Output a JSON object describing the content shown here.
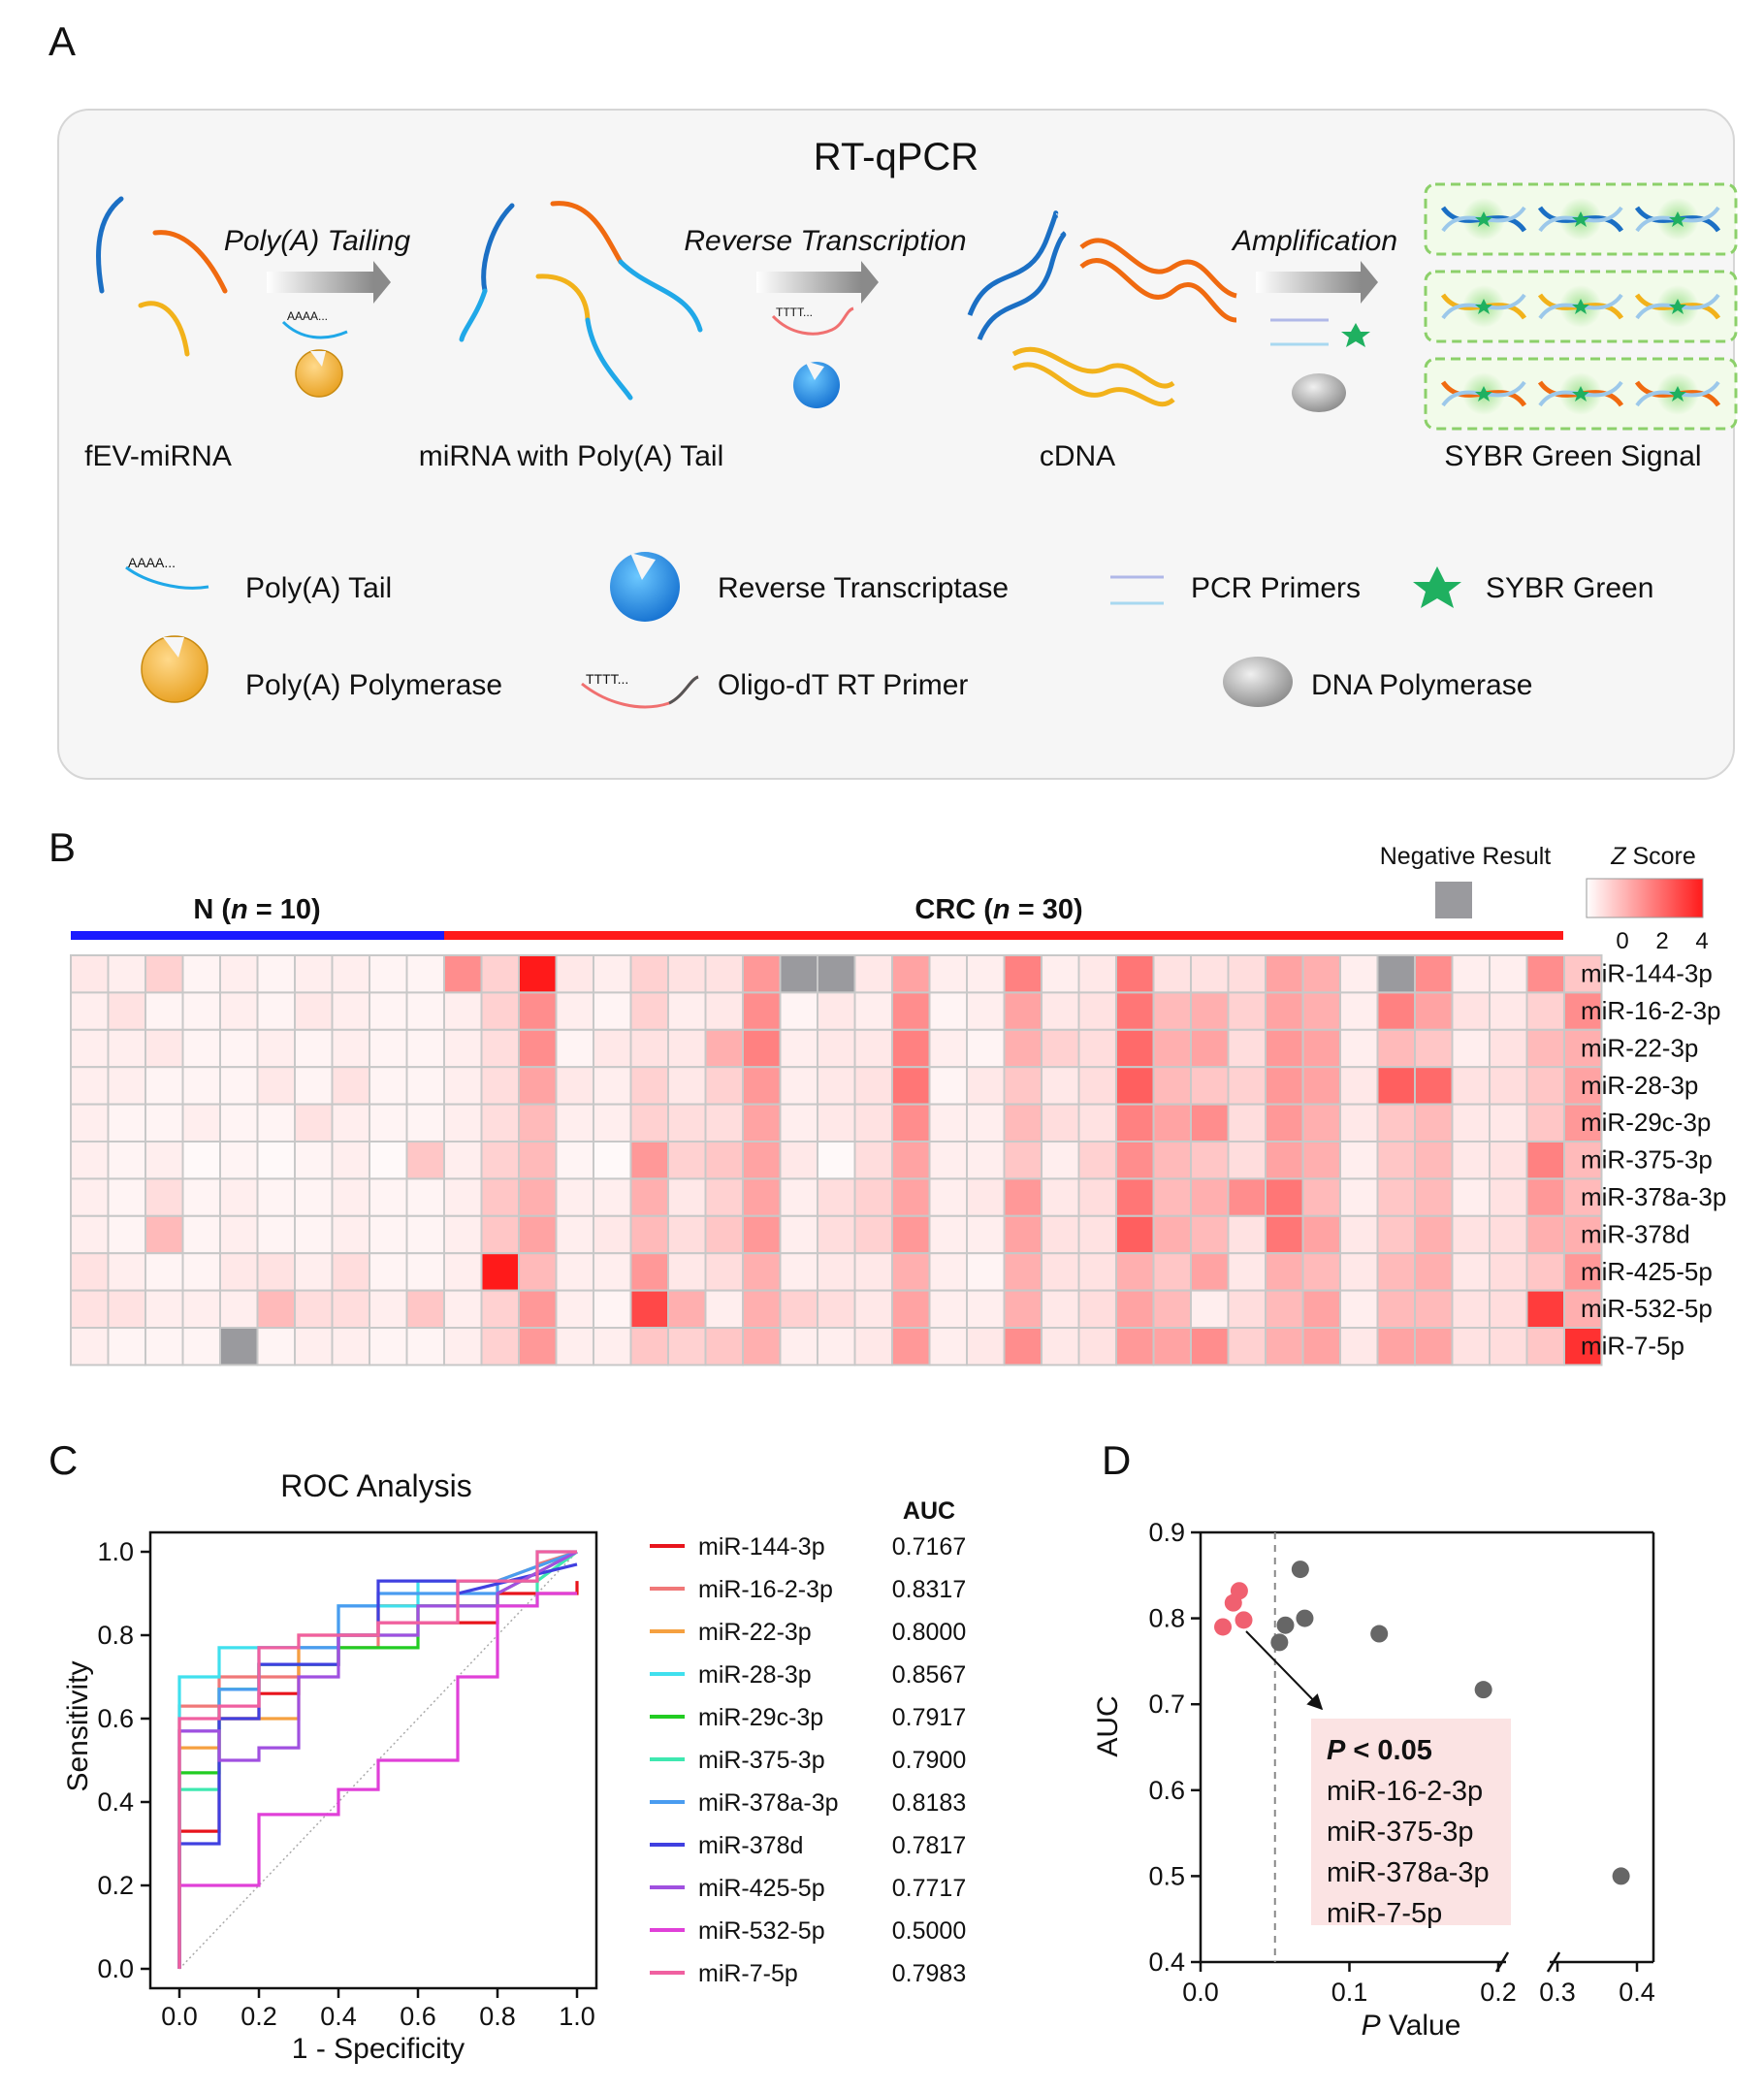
{
  "panels": {
    "a": "A",
    "b": "B",
    "c": "C",
    "d": "D"
  },
  "panel_a": {
    "title": "RT-qPCR",
    "steps": [
      "Poly(A) Tailing",
      "Reverse Transcription",
      "Amplification"
    ],
    "stages": [
      "fEV-miRNA",
      "miRNA with Poly(A) Tail",
      "cDNA",
      "SYBR Green Signal"
    ],
    "legend": {
      "poly_a_tail": "Poly(A) Tail",
      "reverse_transcriptase": "Reverse Transcriptase",
      "pcr_primers": "PCR Primers",
      "sybr_green": "SYBR Green",
      "poly_a_polymerase": "Poly(A) Polymerase",
      "oligo_dt": "Oligo-dT RT Primer",
      "dna_polymerase": "DNA Polymerase"
    },
    "tail_glyph": "AAAA...",
    "primer_glyph": "TTTT...",
    "colors": {
      "blue": "#1b6fc4",
      "orange": "#f06a10",
      "yellow": "#f2b21b",
      "lightblue": "#20a8e8",
      "green": "#3ab56a"
    }
  },
  "panel_b": {
    "group_n": {
      "pre": "N (",
      "n": "n",
      "post": " = 10)"
    },
    "group_crc": {
      "pre": "CRC (",
      "n": "n",
      "post": " = 30)"
    },
    "negative_label": "Negative Result",
    "zscore_label": {
      "z": "Z",
      "rest": " Score"
    },
    "scale_ticks": [
      "0",
      "2",
      "4"
    ],
    "rows": [
      "miR-144-3p",
      "miR-16-2-3p",
      "miR-22-3p",
      "miR-28-3p",
      "miR-29c-3p",
      "miR-375-3p",
      "miR-378a-3p",
      "miR-378d",
      "miR-425-5p",
      "miR-532-5p",
      "miR-7-5p"
    ],
    "colors": {
      "n_bar": "#1a1aff",
      "crc_bar": "#ff1a1a",
      "negative": "#9a9a9e"
    },
    "z": [
      [
        0.4,
        0.3,
        0.8,
        0.2,
        0.3,
        0.2,
        0.3,
        0.3,
        0.2,
        0.2,
        2.0,
        0.8,
        4.0,
        0.4,
        0.3,
        0.8,
        0.5,
        0.5,
        1.8,
        -1,
        -1,
        0.4,
        1.6,
        0.3,
        0.3,
        2.2,
        0.3,
        0.4,
        2.4,
        0.5,
        0.5,
        0.6,
        1.6,
        1.4,
        0.3,
        -1,
        2.0,
        0.3,
        0.3,
        2.0,
        1.0
      ],
      [
        0.3,
        0.5,
        0.2,
        0.2,
        0.3,
        0.2,
        0.4,
        0.3,
        0.2,
        0.2,
        0.3,
        0.8,
        2.0,
        0.3,
        0.2,
        0.8,
        0.3,
        0.4,
        2.0,
        0.2,
        0.4,
        0.3,
        2.0,
        0.2,
        0.3,
        1.6,
        0.4,
        0.5,
        2.4,
        1.2,
        1.4,
        0.8,
        1.6,
        1.4,
        0.3,
        2.2,
        1.6,
        0.5,
        0.4,
        0.8,
        2.0
      ],
      [
        0.3,
        0.3,
        0.4,
        0.2,
        0.2,
        0.3,
        0.2,
        0.3,
        0.2,
        0.2,
        0.3,
        0.6,
        2.0,
        0.2,
        0.4,
        0.5,
        0.4,
        1.4,
        2.2,
        0.3,
        0.4,
        0.4,
        2.2,
        0.3,
        0.2,
        1.4,
        0.8,
        0.6,
        2.6,
        1.4,
        1.6,
        0.6,
        1.8,
        1.6,
        0.3,
        1.2,
        1.0,
        0.3,
        0.5,
        1.2,
        1.4
      ],
      [
        0.3,
        0.3,
        0.2,
        0.2,
        0.2,
        0.4,
        0.2,
        0.5,
        0.2,
        0.2,
        0.3,
        0.6,
        1.6,
        0.4,
        0.3,
        0.8,
        0.4,
        0.8,
        1.8,
        0.3,
        0.4,
        0.5,
        2.4,
        0.2,
        0.4,
        1.0,
        0.4,
        0.6,
        2.8,
        1.2,
        1.0,
        0.8,
        1.8,
        1.6,
        0.4,
        2.8,
        2.6,
        0.5,
        0.6,
        1.0,
        1.6
      ],
      [
        0.3,
        0.2,
        0.2,
        0.3,
        0.2,
        0.2,
        0.5,
        0.3,
        0.2,
        0.2,
        0.3,
        0.6,
        1.2,
        0.3,
        0.3,
        0.8,
        0.6,
        0.6,
        1.6,
        0.3,
        0.4,
        0.5,
        2.0,
        0.3,
        0.3,
        1.2,
        0.6,
        0.5,
        2.2,
        1.6,
        2.0,
        0.6,
        1.8,
        1.4,
        0.4,
        1.0,
        1.2,
        0.4,
        0.4,
        1.0,
        1.8
      ],
      [
        0.3,
        0.2,
        0.3,
        0.1,
        0.2,
        0.1,
        0.2,
        0.3,
        0.1,
        1.0,
        0.3,
        0.8,
        1.2,
        0.2,
        0.1,
        1.8,
        0.8,
        1.0,
        1.6,
        0.4,
        0.1,
        0.6,
        1.6,
        0.3,
        0.3,
        1.0,
        0.3,
        0.8,
        2.0,
        1.2,
        1.0,
        0.6,
        1.6,
        1.4,
        0.3,
        1.0,
        1.2,
        0.4,
        0.5,
        2.2,
        1.2
      ],
      [
        0.3,
        0.2,
        0.6,
        0.2,
        0.3,
        0.2,
        0.2,
        0.3,
        0.2,
        0.2,
        0.3,
        1.0,
        1.4,
        0.3,
        0.3,
        1.4,
        0.4,
        0.8,
        1.6,
        0.3,
        0.6,
        0.8,
        1.6,
        0.3,
        0.4,
        1.8,
        0.4,
        0.6,
        2.4,
        1.2,
        1.4,
        2.0,
        2.4,
        1.2,
        0.3,
        1.0,
        1.2,
        0.3,
        0.5,
        1.8,
        1.2
      ],
      [
        0.3,
        0.2,
        1.2,
        0.2,
        0.3,
        0.2,
        0.2,
        0.3,
        0.2,
        0.2,
        0.3,
        1.0,
        1.6,
        0.3,
        0.4,
        1.2,
        0.6,
        1.0,
        1.8,
        0.3,
        0.6,
        0.8,
        1.8,
        0.3,
        0.3,
        1.6,
        0.5,
        0.5,
        2.8,
        1.4,
        1.2,
        0.5,
        2.4,
        1.6,
        0.4,
        1.0,
        1.4,
        0.5,
        0.6,
        1.4,
        1.4
      ],
      [
        0.5,
        0.3,
        0.2,
        0.2,
        0.4,
        0.5,
        0.3,
        0.6,
        0.2,
        0.2,
        0.3,
        4.0,
        1.2,
        0.3,
        0.3,
        1.8,
        0.4,
        0.6,
        1.4,
        0.3,
        0.4,
        0.4,
        1.4,
        0.3,
        0.2,
        1.4,
        0.5,
        0.5,
        1.4,
        1.0,
        1.6,
        0.4,
        1.4,
        1.2,
        0.4,
        1.2,
        1.4,
        0.4,
        0.6,
        1.0,
        1.8
      ],
      [
        0.5,
        0.5,
        0.3,
        0.3,
        0.3,
        1.2,
        0.6,
        0.6,
        0.3,
        1.0,
        0.3,
        0.8,
        1.8,
        0.3,
        0.2,
        3.2,
        1.4,
        0.3,
        1.4,
        0.8,
        0.6,
        0.4,
        1.6,
        0.3,
        0.3,
        1.4,
        0.4,
        0.6,
        1.6,
        1.2,
        0.3,
        0.6,
        1.2,
        1.6,
        0.3,
        1.2,
        1.2,
        0.5,
        0.6,
        3.4,
        1.4
      ],
      [
        0.3,
        0.2,
        0.2,
        0.2,
        -1,
        0.2,
        0.3,
        0.3,
        0.2,
        0.2,
        0.3,
        0.8,
        1.8,
        0.3,
        0.3,
        1.0,
        0.8,
        1.0,
        1.4,
        0.3,
        0.3,
        0.4,
        1.8,
        0.3,
        0.4,
        2.0,
        0.4,
        0.5,
        1.8,
        1.6,
        2.0,
        0.8,
        1.4,
        1.6,
        0.4,
        1.6,
        1.6,
        0.5,
        0.6,
        1.0,
        3.6
      ]
    ]
  },
  "panel_c": {
    "title": "ROC Analysis",
    "xlabel": "1 - Specificity",
    "ylabel": "Sensitivity",
    "auc_header": "AUC",
    "xticks": [
      "0.0",
      "0.2",
      "0.4",
      "0.6",
      "0.8",
      "1.0"
    ],
    "yticks": [
      "0.0",
      "0.2",
      "0.4",
      "0.6",
      "0.8",
      "1.0"
    ]
  },
  "chart_data": [
    {
      "type": "line",
      "title": "ROC Analysis",
      "xlabel": "1 - Specificity",
      "ylabel": "Sensitivity",
      "xlim": [
        0,
        1
      ],
      "ylim": [
        0,
        1
      ],
      "grid": false,
      "legend": "right",
      "series": [
        {
          "name": "miR-144-3p",
          "auc": "0.7167",
          "color": "#e8141c",
          "x": [
            0,
            0,
            0.1,
            0.1,
            0.2,
            0.2,
            0.3,
            0.3,
            0.4,
            0.4,
            0.5,
            0.5,
            0.6,
            0.6,
            0.8,
            0.8,
            1.0,
            1.0
          ],
          "y": [
            0,
            0.33,
            0.33,
            0.6,
            0.6,
            0.66,
            0.66,
            0.73,
            0.73,
            0.8,
            0.8,
            0.87,
            0.87,
            0.83,
            0.83,
            0.9,
            0.9,
            0.93
          ]
        },
        {
          "name": "miR-16-2-3p",
          "auc": "0.8317",
          "color": "#f07878",
          "x": [
            0,
            0,
            0.1,
            0.1,
            0.3,
            0.3,
            0.5,
            0.5,
            0.7,
            0.7,
            0.9,
            0.9,
            1.0
          ],
          "y": [
            0,
            0.63,
            0.63,
            0.7,
            0.7,
            0.77,
            0.77,
            0.83,
            0.83,
            0.93,
            0.93,
            0.97,
            1.0
          ]
        },
        {
          "name": "miR-22-3p",
          "auc": "0.8000",
          "color": "#f5a040",
          "x": [
            0,
            0,
            0.1,
            0.1,
            0.3,
            0.3,
            0.5,
            0.5,
            0.8,
            0.8,
            1.0
          ],
          "y": [
            0,
            0.53,
            0.53,
            0.6,
            0.6,
            0.8,
            0.8,
            0.87,
            0.87,
            0.93,
            1.0
          ]
        },
        {
          "name": "miR-28-3p",
          "auc": "0.8567",
          "color": "#40e0ee",
          "x": [
            0,
            0,
            0.1,
            0.1,
            0.4,
            0.4,
            0.6,
            0.6,
            0.9,
            0.9,
            1.0
          ],
          "y": [
            0,
            0.7,
            0.7,
            0.77,
            0.77,
            0.87,
            0.87,
            0.93,
            0.93,
            1.0,
            1.0
          ]
        },
        {
          "name": "miR-29c-3p",
          "auc": "0.7917",
          "color": "#22cc22",
          "x": [
            0,
            0,
            0.1,
            0.1,
            0.2,
            0.2,
            0.4,
            0.4,
            0.6,
            0.6,
            0.8,
            0.8,
            1.0
          ],
          "y": [
            0,
            0.47,
            0.47,
            0.67,
            0.67,
            0.73,
            0.73,
            0.77,
            0.77,
            0.87,
            0.87,
            0.9,
            1.0
          ]
        },
        {
          "name": "miR-375-3p",
          "auc": "0.7900",
          "color": "#3ee8b0",
          "x": [
            0,
            0,
            0.1,
            0.1,
            0.2,
            0.2,
            0.4,
            0.4,
            0.6,
            0.6,
            0.9,
            0.9,
            1.0
          ],
          "y": [
            0,
            0.43,
            0.43,
            0.67,
            0.67,
            0.73,
            0.73,
            0.8,
            0.8,
            0.87,
            0.87,
            0.93,
            1.0
          ]
        },
        {
          "name": "miR-378a-3p",
          "auc": "0.8183",
          "color": "#4a9cf0",
          "x": [
            0,
            0,
            0.1,
            0.1,
            0.2,
            0.2,
            0.4,
            0.4,
            0.5,
            0.5,
            0.8,
            0.8,
            1.0
          ],
          "y": [
            0,
            0.57,
            0.57,
            0.67,
            0.67,
            0.77,
            0.77,
            0.87,
            0.87,
            0.9,
            0.9,
            0.93,
            1.0
          ]
        },
        {
          "name": "miR-378d",
          "auc": "0.7817",
          "color": "#4040e0",
          "x": [
            0,
            0,
            0.1,
            0.1,
            0.2,
            0.2,
            0.4,
            0.4,
            0.5,
            0.5,
            0.7,
            0.7,
            1.0
          ],
          "y": [
            0,
            0.3,
            0.3,
            0.6,
            0.6,
            0.73,
            0.73,
            0.8,
            0.8,
            0.93,
            0.93,
            0.9,
            0.97
          ]
        },
        {
          "name": "miR-425-5p",
          "auc": "0.7717",
          "color": "#a050e0",
          "x": [
            0,
            0,
            0.1,
            0.1,
            0.2,
            0.2,
            0.3,
            0.3,
            0.4,
            0.4,
            0.6,
            0.6,
            0.8,
            0.8,
            1.0
          ],
          "y": [
            0,
            0.57,
            0.57,
            0.5,
            0.5,
            0.53,
            0.53,
            0.7,
            0.7,
            0.8,
            0.8,
            0.87,
            0.87,
            0.9,
            1.0
          ]
        },
        {
          "name": "miR-532-5p",
          "auc": "0.5000",
          "color": "#e040d8",
          "x": [
            0,
            0,
            0.2,
            0.2,
            0.4,
            0.4,
            0.5,
            0.5,
            0.7,
            0.7,
            0.8,
            0.8,
            0.9,
            0.9,
            1.0
          ],
          "y": [
            0,
            0.2,
            0.2,
            0.37,
            0.37,
            0.43,
            0.43,
            0.5,
            0.5,
            0.7,
            0.7,
            0.87,
            0.87,
            0.9,
            0.9
          ]
        },
        {
          "name": "miR-7-5p",
          "auc": "0.7983",
          "color": "#f060a0",
          "x": [
            0,
            0,
            0.1,
            0.1,
            0.2,
            0.2,
            0.3,
            0.3,
            0.5,
            0.5,
            0.7,
            0.7,
            0.9,
            0.9,
            1.0
          ],
          "y": [
            0,
            0.6,
            0.6,
            0.63,
            0.63,
            0.77,
            0.77,
            0.8,
            0.8,
            0.83,
            0.83,
            0.93,
            0.93,
            1.0,
            1.0
          ]
        }
      ]
    },
    {
      "type": "scatter",
      "xlabel": {
        "p": "P",
        "rest": " Value"
      },
      "ylabel": "AUC",
      "ylim": [
        0.4,
        0.9
      ],
      "xticks": [
        "0.0",
        "0.1",
        "0.2",
        "0.3",
        "0.4"
      ],
      "yticks": [
        "0.4",
        "0.5",
        "0.6",
        "0.7",
        "0.8",
        "0.9"
      ],
      "threshold": 0.05,
      "annotation": {
        "header_p": "P",
        "header_rest": " < 0.05",
        "items": [
          "miR-16-2-3p",
          "miR-375-3p",
          "miR-378a-3p",
          "miR-7-5p"
        ]
      },
      "points": [
        {
          "p": 0.015,
          "auc": 0.79,
          "sig": true
        },
        {
          "p": 0.022,
          "auc": 0.818,
          "sig": true
        },
        {
          "p": 0.026,
          "auc": 0.832,
          "sig": true
        },
        {
          "p": 0.029,
          "auc": 0.798,
          "sig": true
        },
        {
          "p": 0.053,
          "auc": 0.772,
          "sig": false
        },
        {
          "p": 0.057,
          "auc": 0.792,
          "sig": false
        },
        {
          "p": 0.067,
          "auc": 0.857,
          "sig": false
        },
        {
          "p": 0.07,
          "auc": 0.8,
          "sig": false
        },
        {
          "p": 0.12,
          "auc": 0.782,
          "sig": false
        },
        {
          "p": 0.19,
          "auc": 0.717,
          "sig": false
        },
        {
          "p": 0.38,
          "auc": 0.5,
          "sig": false
        }
      ],
      "colors": {
        "sig": "#f06070",
        "nonsig": "#666666"
      }
    }
  ]
}
